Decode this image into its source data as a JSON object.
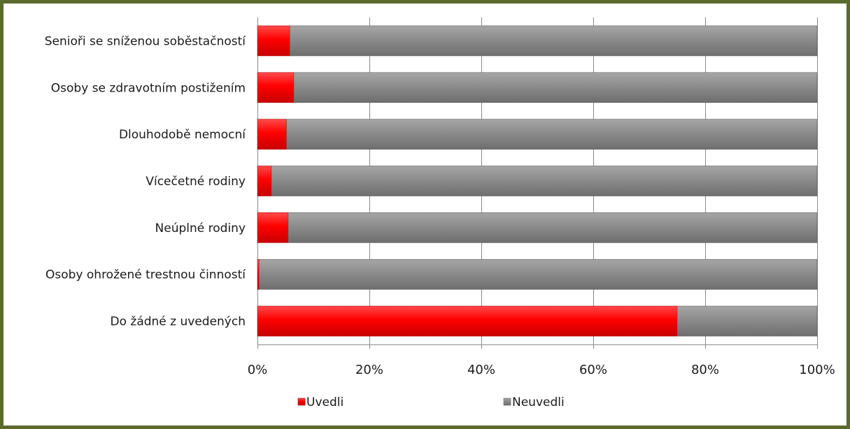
{
  "chart_data": {
    "type": "bar",
    "orientation": "horizontal",
    "stacked": "percent",
    "categories": [
      "Senioři se sníženou soběstačností",
      "Osoby se zdravotním postižením",
      "Dlouhodobě nemocní",
      "Vícečetné rodiny",
      "Neúplné rodiny",
      "Osoby ohrožené trestnou činností",
      "Do žádné z uvedených"
    ],
    "series": [
      {
        "name": "Uvedli",
        "color": "#ff0000",
        "values": [
          5.8,
          6.5,
          5.2,
          2.5,
          5.5,
          0.3,
          75.0
        ]
      },
      {
        "name": "Neuvedli",
        "color": "#8c8c8c",
        "values": [
          94.2,
          93.5,
          94.8,
          97.5,
          94.5,
          99.7,
          25.0
        ]
      }
    ],
    "x_ticks": [
      "0%",
      "20%",
      "40%",
      "60%",
      "80%",
      "100%"
    ],
    "xlim": [
      0,
      100
    ],
    "grid": true,
    "legend_position": "bottom"
  }
}
